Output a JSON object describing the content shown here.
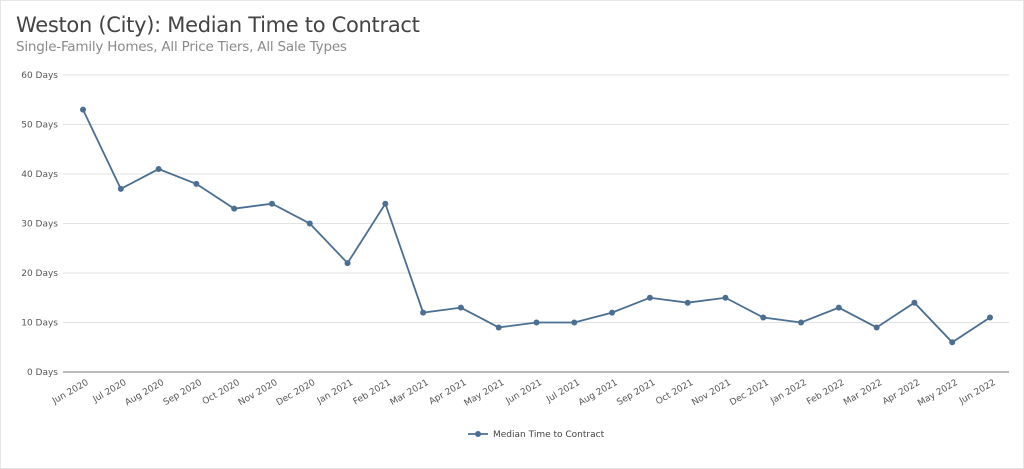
{
  "chart_data": {
    "type": "line",
    "title": "Weston (City): Median Time to Contract",
    "subtitle": "Single-Family Homes, All Price Tiers, All Sale Types",
    "categories": [
      "Jun 2020",
      "Jul 2020",
      "Aug 2020",
      "Sep 2020",
      "Oct 2020",
      "Nov 2020",
      "Dec 2020",
      "Jan 2021",
      "Feb 2021",
      "Mar 2021",
      "Apr 2021",
      "May 2021",
      "Jun 2021",
      "Jul 2021",
      "Aug 2021",
      "Sep 2021",
      "Oct 2021",
      "Nov 2021",
      "Dec 2021",
      "Jan 2022",
      "Feb 2022",
      "Mar 2022",
      "Apr 2022",
      "May 2022",
      "Jun 2022"
    ],
    "series": [
      {
        "name": "Median Time to Contract",
        "color": "#4a6f93",
        "values": [
          53,
          37,
          41,
          38,
          33,
          34,
          30,
          22,
          34,
          12,
          13,
          9,
          10,
          10,
          12,
          15,
          14,
          15,
          11,
          10,
          13,
          9,
          14,
          6,
          11
        ]
      }
    ],
    "y_ticks": [
      0,
      10,
      20,
      30,
      40,
      50,
      60
    ],
    "y_tick_suffix": " Days",
    "ylim": [
      0,
      60
    ],
    "grid": true,
    "legend": "bottom-center"
  }
}
